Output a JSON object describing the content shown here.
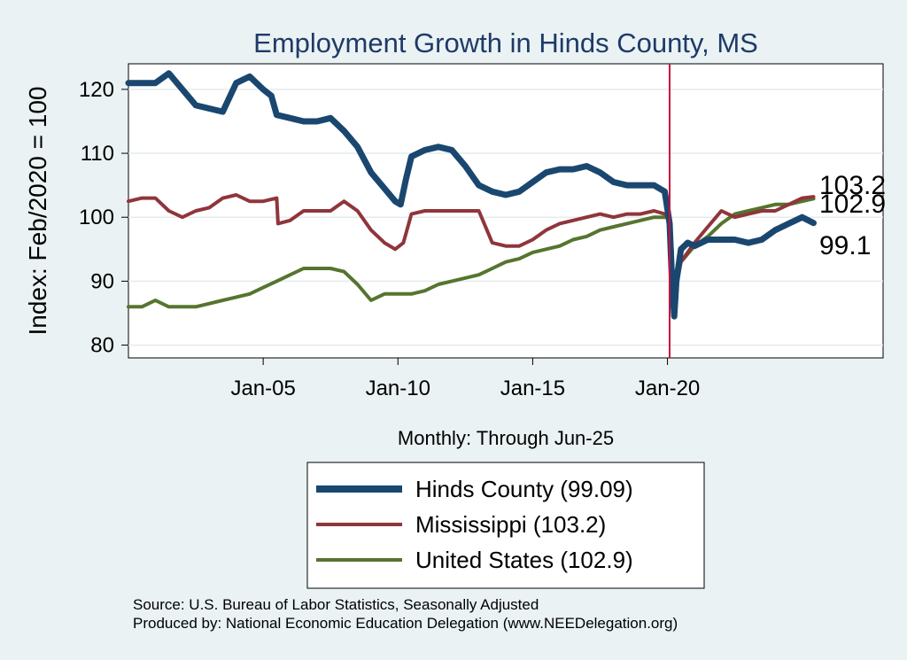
{
  "chart_data": {
    "type": "line",
    "title": "Employment Growth in Hinds  County, MS",
    "xlabel": "Monthly: Through Jun-25",
    "ylabel": "Index: Feb/2020 = 100",
    "ylim": [
      78,
      124
    ],
    "xlim": [
      2000.0,
      2028.0
    ],
    "yticks": [
      80,
      90,
      100,
      110,
      120
    ],
    "xticks": [
      {
        "value": 2005,
        "label": "Jan-05"
      },
      {
        "value": 2010,
        "label": "Jan-10"
      },
      {
        "value": 2015,
        "label": "Jan-15"
      },
      {
        "value": 2020,
        "label": "Jan-20"
      }
    ],
    "reference_line": {
      "x": 2020.08,
      "color": "#c8103e"
    },
    "grid": "horizontal",
    "series": [
      {
        "name": "Hinds  County (99.09)",
        "color": "#1a476f",
        "width": 7,
        "x": [
          2000.0,
          2000.5,
          2001.0,
          2001.5,
          2002.0,
          2002.5,
          2003.0,
          2003.5,
          2004.0,
          2004.5,
          2005.0,
          2005.3,
          2005.5,
          2006.0,
          2006.5,
          2007.0,
          2007.5,
          2008.0,
          2008.5,
          2009.0,
          2009.5,
          2009.9,
          2010.1,
          2010.3,
          2010.5,
          2011.0,
          2011.5,
          2012.0,
          2012.5,
          2013.0,
          2013.5,
          2014.0,
          2014.5,
          2015.0,
          2015.5,
          2016.0,
          2016.5,
          2017.0,
          2017.5,
          2018.0,
          2018.5,
          2019.0,
          2019.5,
          2019.9,
          2020.08,
          2020.17,
          2020.25,
          2020.33,
          2020.5,
          2020.75,
          2021.0,
          2021.5,
          2022.0,
          2022.5,
          2023.0,
          2023.5,
          2024.0,
          2024.5,
          2025.0,
          2025.42
        ],
        "y": [
          121,
          121,
          121,
          122.5,
          120,
          117.5,
          117,
          116.5,
          121,
          122,
          120,
          119,
          116,
          115.5,
          115,
          115,
          115.5,
          113.5,
          111,
          107,
          104.5,
          102.5,
          102,
          106,
          109.5,
          110.5,
          111,
          110.5,
          108,
          105,
          104,
          103.5,
          104,
          105.5,
          107,
          107.5,
          107.5,
          108,
          107,
          105.5,
          105,
          105,
          105,
          104,
          99,
          90,
          84.5,
          90,
          95,
          96,
          95.5,
          96.5,
          96.5,
          96.5,
          96,
          96.5,
          98,
          99,
          100,
          99.1
        ]
      },
      {
        "name": "Mississippi (103.2)",
        "color": "#90353b",
        "width": 4,
        "x": [
          2000.0,
          2000.5,
          2001.0,
          2001.5,
          2002.0,
          2002.5,
          2003.0,
          2003.5,
          2004.0,
          2004.5,
          2005.0,
          2005.5,
          2005.55,
          2006.0,
          2006.5,
          2007.0,
          2007.5,
          2008.0,
          2008.5,
          2009.0,
          2009.5,
          2009.9,
          2010.2,
          2010.5,
          2011.0,
          2011.5,
          2012.0,
          2012.5,
          2013.0,
          2013.5,
          2014.0,
          2014.5,
          2015.0,
          2015.5,
          2016.0,
          2016.5,
          2017.0,
          2017.5,
          2018.0,
          2018.5,
          2019.0,
          2019.5,
          2019.9,
          2020.08,
          2020.17,
          2020.25,
          2020.33,
          2020.5,
          2021.0,
          2021.5,
          2022.0,
          2022.5,
          2023.0,
          2023.5,
          2024.0,
          2024.5,
          2025.0,
          2025.42
        ],
        "y": [
          102.5,
          103,
          103,
          101,
          100,
          101,
          101.5,
          103,
          103.5,
          102.5,
          102.5,
          103,
          99,
          99.5,
          101,
          101,
          101,
          102.5,
          101,
          98,
          96,
          95,
          96,
          100.5,
          101,
          101,
          101,
          101,
          101,
          96,
          95.5,
          95.5,
          96.5,
          98,
          99,
          99.5,
          100,
          100.5,
          100,
          100.5,
          100.5,
          101,
          100.5,
          100,
          95,
          86,
          90,
          93,
          96,
          98.5,
          101,
          100,
          100.5,
          101,
          101,
          102,
          103,
          103.2
        ]
      },
      {
        "name": "United States (102.9)",
        "color": "#55752f",
        "width": 4,
        "x": [
          2000.0,
          2000.5,
          2001.0,
          2001.5,
          2002.0,
          2002.5,
          2003.0,
          2003.5,
          2004.0,
          2004.5,
          2005.0,
          2005.5,
          2006.0,
          2006.5,
          2007.0,
          2007.5,
          2008.0,
          2008.5,
          2009.0,
          2009.5,
          2010.0,
          2010.5,
          2011.0,
          2011.5,
          2012.0,
          2012.5,
          2013.0,
          2013.5,
          2014.0,
          2014.5,
          2015.0,
          2015.5,
          2016.0,
          2016.5,
          2017.0,
          2017.5,
          2018.0,
          2018.5,
          2019.0,
          2019.5,
          2019.9,
          2020.08,
          2020.17,
          2020.25,
          2020.33,
          2020.5,
          2021.0,
          2021.5,
          2022.0,
          2022.5,
          2023.0,
          2023.5,
          2024.0,
          2024.5,
          2025.0,
          2025.42
        ],
        "y": [
          86,
          86,
          87,
          86,
          86,
          86,
          86.5,
          87,
          87.5,
          88,
          89,
          90,
          91,
          92,
          92,
          92,
          91.5,
          89.5,
          87,
          88,
          88,
          88,
          88.5,
          89.5,
          90,
          90.5,
          91,
          92,
          93,
          93.5,
          94.5,
          95,
          95.5,
          96.5,
          97,
          98,
          98.5,
          99,
          99.5,
          100,
          100,
          100,
          93,
          85,
          89,
          93,
          95.5,
          97,
          99,
          100.5,
          101,
          101.5,
          102,
          102,
          102.5,
          102.9
        ]
      }
    ],
    "end_labels": [
      {
        "text": "103.2",
        "value": 103.2
      },
      {
        "text": "102.9",
        "value": 102.9
      },
      {
        "text": "99.1",
        "value": 99.1
      }
    ]
  },
  "legend": {
    "items": [
      {
        "label": "Hinds  County (99.09)",
        "color": "#1a476f",
        "width": 8
      },
      {
        "label": "Mississippi (103.2)",
        "color": "#90353b",
        "width": 4
      },
      {
        "label": "United States (102.9)",
        "color": "#55752f",
        "width": 4
      }
    ]
  },
  "source": {
    "line1": "Source: U.S. Bureau of Labor Statistics, Seasonally Adjusted",
    "line2": "Produced by: National Economic Education Delegation (www.NEEDelegation.org)"
  },
  "colors": {
    "background": "#eaf2f3",
    "plot_background": "#ffffff",
    "grid": "#e4ecee",
    "title": "#1f3a68"
  }
}
